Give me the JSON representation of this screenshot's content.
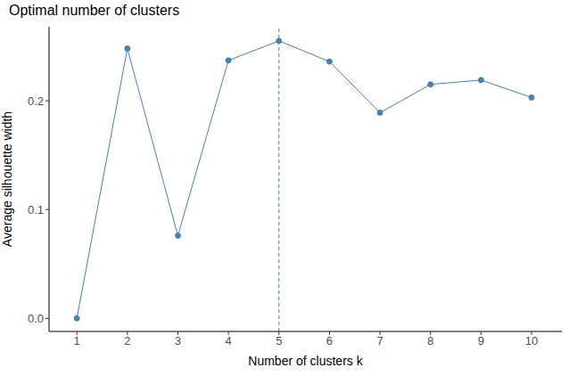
{
  "chart_data": {
    "type": "line",
    "title": "Optimal number of clusters",
    "x_label": "Number of clusters k",
    "y_label": "Average silhouette width",
    "x": [
      1,
      2,
      3,
      4,
      5,
      6,
      7,
      8,
      9,
      10
    ],
    "values": [
      0,
      0.248,
      0.076,
      0.237,
      0.255,
      0.236,
      0.189,
      0.215,
      0.219,
      0.203
    ],
    "color": "#4682b4",
    "marker": "circle",
    "xlim": [
      0.45,
      10.6
    ],
    "xticks": [
      1,
      2,
      3,
      4,
      5,
      6,
      7,
      8,
      9,
      10
    ],
    "ylim": [
      -0.012,
      0.268
    ],
    "yticks": [
      {
        "value": 0,
        "label": "0.0"
      },
      0.1,
      0.2
    ],
    "vline": 5,
    "grid": false
  }
}
